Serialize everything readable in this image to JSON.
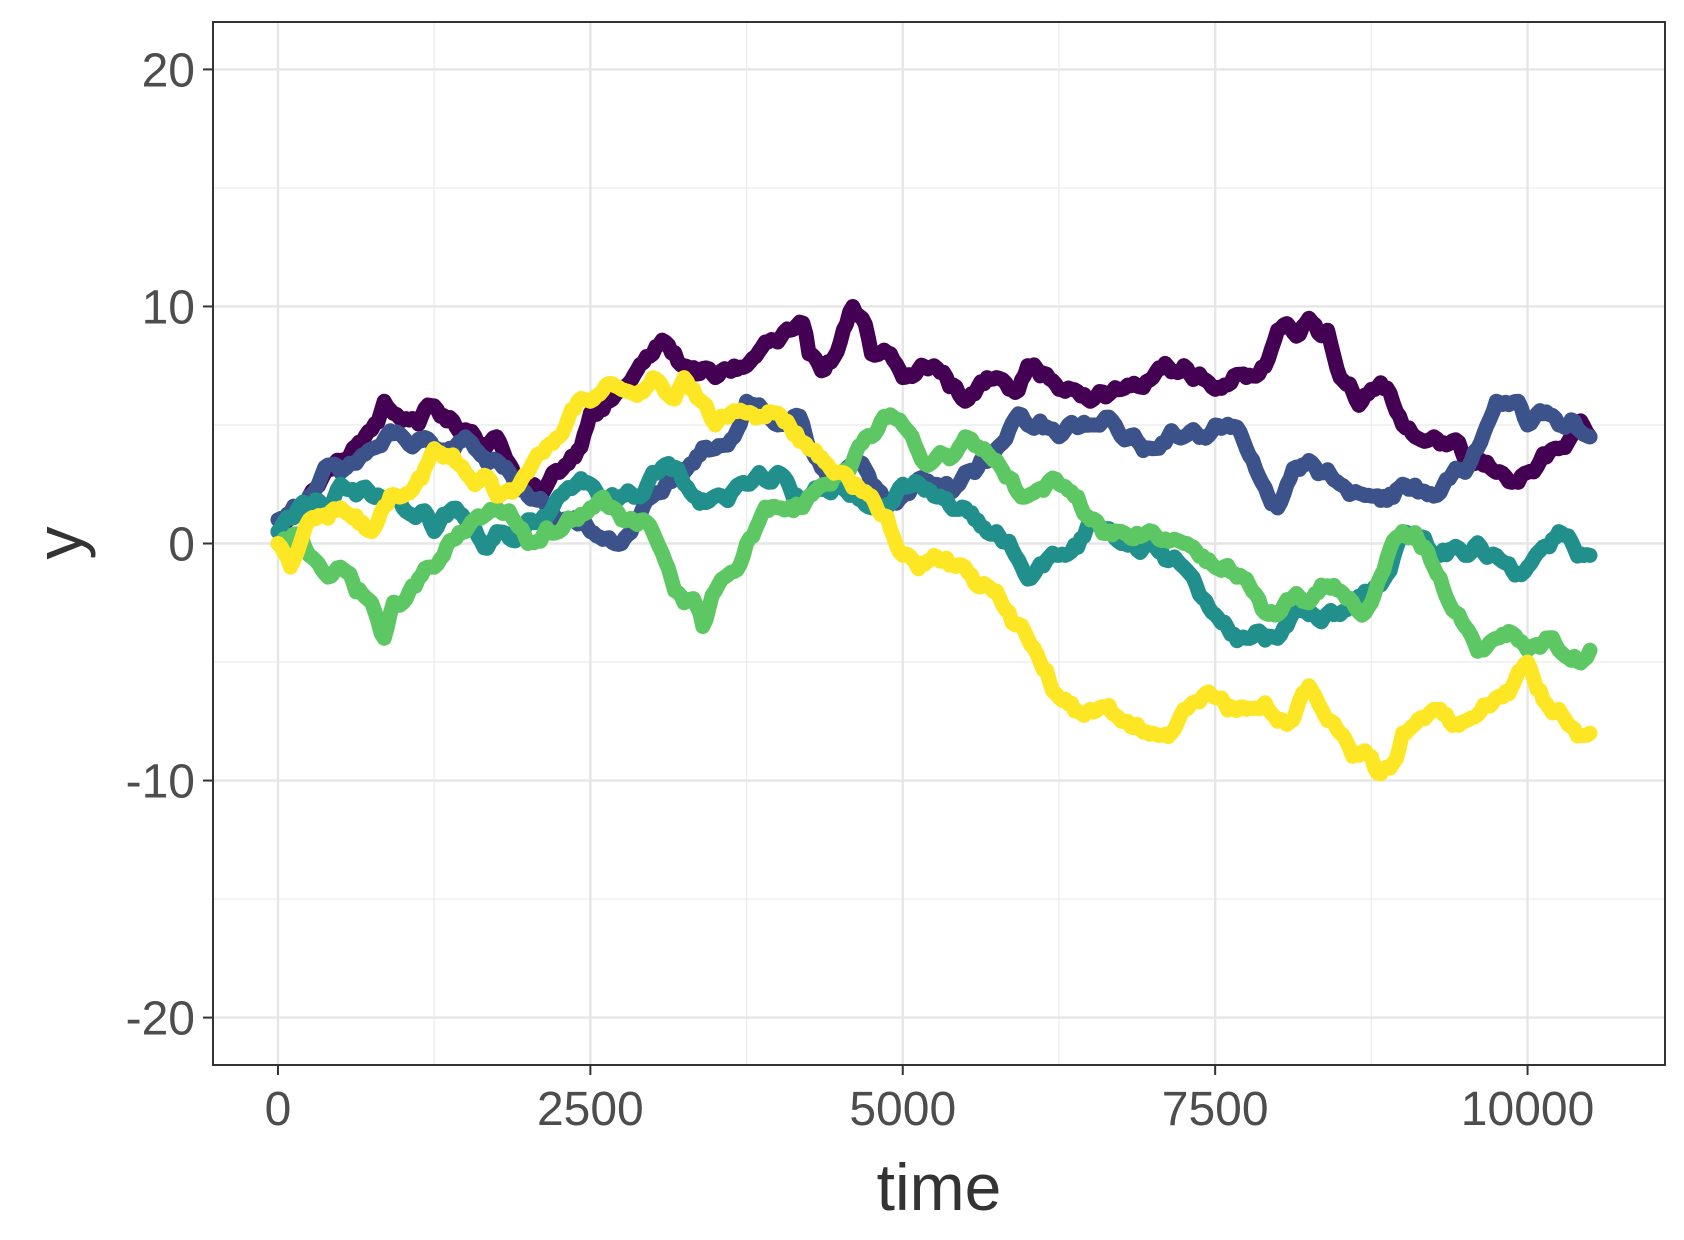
{
  "chart_data": {
    "type": "line",
    "xlabel": "time",
    "ylabel": "y",
    "xlim": [
      -520,
      11100
    ],
    "ylim": [
      -22,
      22
    ],
    "x_ticks": [
      0,
      2500,
      5000,
      7500,
      10000
    ],
    "x_tick_labels": [
      "0",
      "2500",
      "5000",
      "7500",
      "10000"
    ],
    "y_ticks": [
      -20,
      -10,
      0,
      10,
      20
    ],
    "y_tick_labels": [
      "-20",
      "-10",
      "0",
      "10",
      "20"
    ],
    "grid": true,
    "legend": "none",
    "colors": [
      "#440154",
      "#3B528B",
      "#21908C",
      "#5DC863",
      "#FDE725"
    ],
    "series": [
      {
        "color": "#440154",
        "x": [
          0,
          250,
          500,
          750,
          850,
          1000,
          1250,
          1500,
          1750,
          2000,
          2100,
          2250,
          2500,
          2750,
          3000,
          3100,
          3250,
          3500,
          3750,
          4000,
          4100,
          4250,
          4500,
          4600,
          4750,
          5000,
          5250,
          5500,
          5750,
          6000,
          6250,
          6500,
          6750,
          7000,
          7250,
          7500,
          7750,
          8000,
          8250,
          8400,
          8500,
          8750,
          9000,
          9250,
          9500,
          9750,
          10000,
          10250,
          10500
        ],
        "y": [
          0.5,
          2.0,
          3.5,
          4.8,
          6.0,
          5.2,
          5.8,
          4.8,
          4.5,
          2.5,
          2.0,
          3.0,
          5.5,
          6.5,
          8.0,
          8.5,
          7.5,
          7.0,
          7.5,
          8.5,
          9.0,
          8.0,
          8.5,
          10.0,
          8.0,
          7.0,
          7.5,
          6.0,
          7.0,
          7.5,
          6.5,
          6.0,
          6.5,
          7.0,
          7.5,
          6.5,
          7.0,
          9.0,
          9.5,
          9.0,
          7.0,
          6.5,
          5.0,
          4.5,
          3.5,
          3.0,
          3.0,
          4.0,
          4.5
        ]
      },
      {
        "color": "#3B528B",
        "x": [
          0,
          250,
          500,
          750,
          1000,
          1250,
          1500,
          1750,
          2000,
          2250,
          2500,
          2750,
          3000,
          3250,
          3500,
          3750,
          4000,
          4250,
          4500,
          4750,
          5000,
          5250,
          5500,
          5750,
          6000,
          6250,
          6500,
          6750,
          7000,
          7250,
          7500,
          7750,
          8000,
          8250,
          8500,
          8750,
          9000,
          9250,
          9500,
          9750,
          10000,
          10250,
          10500
        ],
        "y": [
          1.0,
          2.0,
          3.0,
          4.0,
          4.5,
          4.0,
          4.5,
          3.5,
          2.0,
          1.0,
          0.5,
          0.0,
          2.0,
          3.0,
          4.0,
          6.0,
          5.0,
          4.0,
          3.0,
          2.5,
          2.0,
          2.5,
          3.0,
          4.0,
          5.0,
          4.5,
          5.0,
          4.5,
          4.0,
          4.5,
          5.0,
          4.0,
          1.5,
          3.5,
          2.5,
          2.0,
          2.5,
          2.0,
          3.0,
          6.0,
          5.0,
          5.0,
          4.5
        ]
      },
      {
        "color": "#21908C",
        "x": [
          0,
          250,
          500,
          750,
          1000,
          1250,
          1500,
          1750,
          2000,
          2250,
          2500,
          2750,
          3000,
          3250,
          3500,
          3750,
          4000,
          4250,
          4500,
          4750,
          5000,
          5250,
          5500,
          5750,
          6000,
          6250,
          6500,
          6750,
          7000,
          7250,
          7500,
          7750,
          8000,
          8250,
          8500,
          8750,
          9000,
          9250,
          9500,
          9750,
          10000,
          10250,
          10500
        ],
        "y": [
          0.5,
          1.5,
          2.5,
          2.0,
          1.5,
          0.5,
          1.0,
          0.5,
          1.0,
          2.0,
          2.5,
          2.0,
          3.0,
          2.5,
          2.0,
          2.5,
          3.0,
          2.0,
          2.5,
          1.5,
          2.5,
          2.0,
          1.5,
          0.5,
          -1.5,
          -0.5,
          1.0,
          0.0,
          0.0,
          -1.0,
          -3.0,
          -4.0,
          -4.0,
          -3.0,
          -3.0,
          -2.0,
          0.5,
          -0.5,
          -0.5,
          -0.5,
          -1.0,
          0.5,
          -0.5
        ]
      },
      {
        "color": "#5DC863",
        "x": [
          0,
          250,
          500,
          750,
          850,
          1000,
          1250,
          1500,
          1750,
          2000,
          2250,
          2500,
          2750,
          3000,
          3250,
          3400,
          3500,
          3750,
          4000,
          4250,
          4500,
          4750,
          5000,
          5250,
          5500,
          5750,
          6000,
          6250,
          6500,
          6750,
          7000,
          7250,
          7500,
          7750,
          8000,
          8250,
          8500,
          8750,
          9000,
          9250,
          9500,
          9750,
          10000,
          10250,
          10500
        ],
        "y": [
          0.0,
          -0.5,
          -1.0,
          -2.5,
          -4.0,
          -2.5,
          -1.0,
          0.5,
          1.5,
          0.0,
          0.5,
          1.5,
          1.0,
          0.5,
          -2.5,
          -3.5,
          -2.0,
          0.0,
          1.5,
          2.0,
          3.0,
          4.5,
          5.0,
          3.5,
          4.5,
          3.5,
          2.0,
          2.5,
          1.0,
          0.5,
          0.5,
          0.0,
          -1.0,
          -1.5,
          -3.0,
          -2.5,
          -2.0,
          -2.5,
          0.5,
          -1.0,
          -3.5,
          -4.0,
          -4.5,
          -4.5,
          -4.5
        ]
      },
      {
        "color": "#FDE725",
        "x": [
          0,
          100,
          250,
          500,
          750,
          1000,
          1250,
          1500,
          1750,
          2000,
          2250,
          2500,
          2750,
          3000,
          3250,
          3500,
          3750,
          4000,
          4250,
          4500,
          4750,
          5000,
          5250,
          5500,
          5750,
          6000,
          6250,
          6500,
          6750,
          7000,
          7250,
          7500,
          7750,
          8000,
          8250,
          8500,
          8750,
          8850,
          9000,
          9250,
          9500,
          9750,
          10000,
          10250,
          10500
        ],
        "y": [
          0.0,
          -1.0,
          1.0,
          1.5,
          0.5,
          2.0,
          4.0,
          3.0,
          2.0,
          3.0,
          4.5,
          6.0,
          6.5,
          7.0,
          7.0,
          5.0,
          5.5,
          5.5,
          4.0,
          3.0,
          2.0,
          -0.5,
          -0.5,
          -1.0,
          -2.0,
          -4.0,
          -6.5,
          -7.0,
          -7.5,
          -8.0,
          -7.0,
          -6.5,
          -7.0,
          -7.5,
          -6.0,
          -8.0,
          -9.0,
          -9.5,
          -8.0,
          -7.0,
          -7.5,
          -6.5,
          -5.0,
          -7.0,
          -8.0
        ]
      }
    ]
  }
}
